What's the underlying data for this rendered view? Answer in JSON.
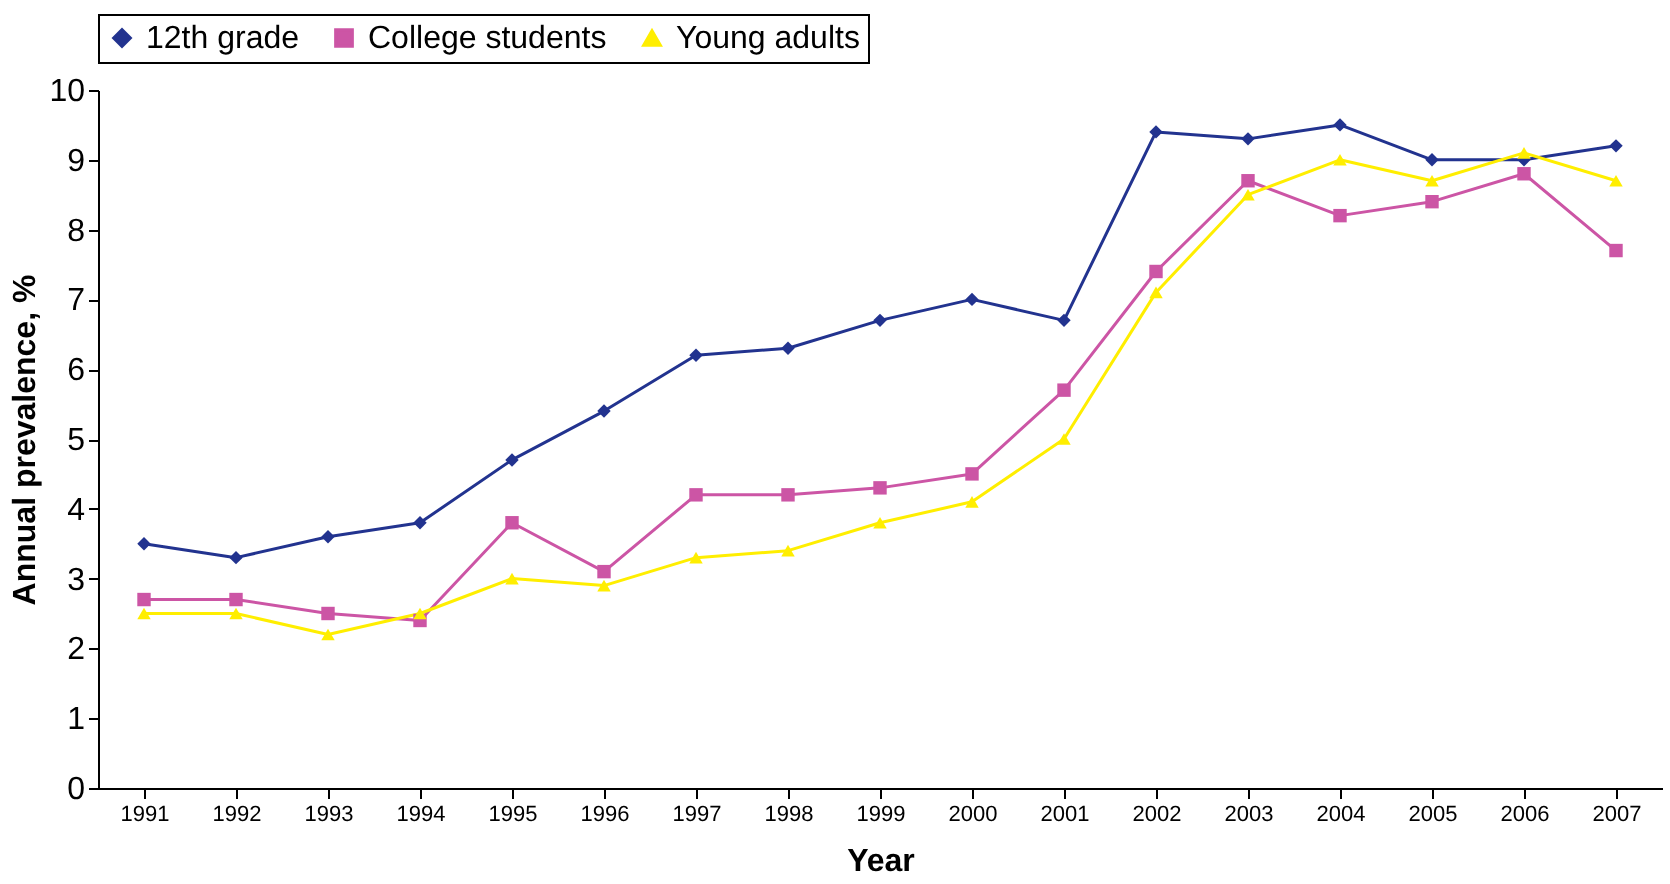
{
  "chart_data": {
    "type": "line",
    "xlabel": "Year",
    "ylabel": "Annual prevalence, %",
    "categories": [
      "1991",
      "1992",
      "1993",
      "1994",
      "1995",
      "1996",
      "1997",
      "1998",
      "1999",
      "2000",
      "2001",
      "2002",
      "2003",
      "2004",
      "2005",
      "2006",
      "2007"
    ],
    "series": [
      {
        "name": "12th grade",
        "color": "#22338f",
        "marker": "diamond",
        "values": [
          3.5,
          3.3,
          3.6,
          3.8,
          4.7,
          5.4,
          6.2,
          6.3,
          6.7,
          7.0,
          6.7,
          9.4,
          9.3,
          9.5,
          9.0,
          9.0,
          9.2
        ]
      },
      {
        "name": "College students",
        "color": "#cc55a5",
        "marker": "square",
        "values": [
          2.7,
          2.7,
          2.5,
          2.4,
          3.8,
          3.1,
          4.2,
          4.2,
          4.3,
          4.5,
          5.7,
          7.4,
          8.7,
          8.2,
          8.4,
          8.8,
          7.7
        ]
      },
      {
        "name": "Young adults",
        "color": "#ffee00",
        "marker": "triangle",
        "values": [
          2.5,
          2.5,
          2.2,
          2.5,
          3.0,
          2.9,
          3.3,
          3.4,
          3.8,
          4.1,
          5.0,
          7.1,
          8.5,
          9.0,
          8.7,
          9.1,
          8.7
        ]
      }
    ],
    "ylim": [
      0,
      10
    ],
    "yticks": [
      0,
      1,
      2,
      3,
      4,
      5,
      6,
      7,
      8,
      9,
      10
    ],
    "grid": false,
    "legend": "top",
    "line_style": "solid"
  }
}
